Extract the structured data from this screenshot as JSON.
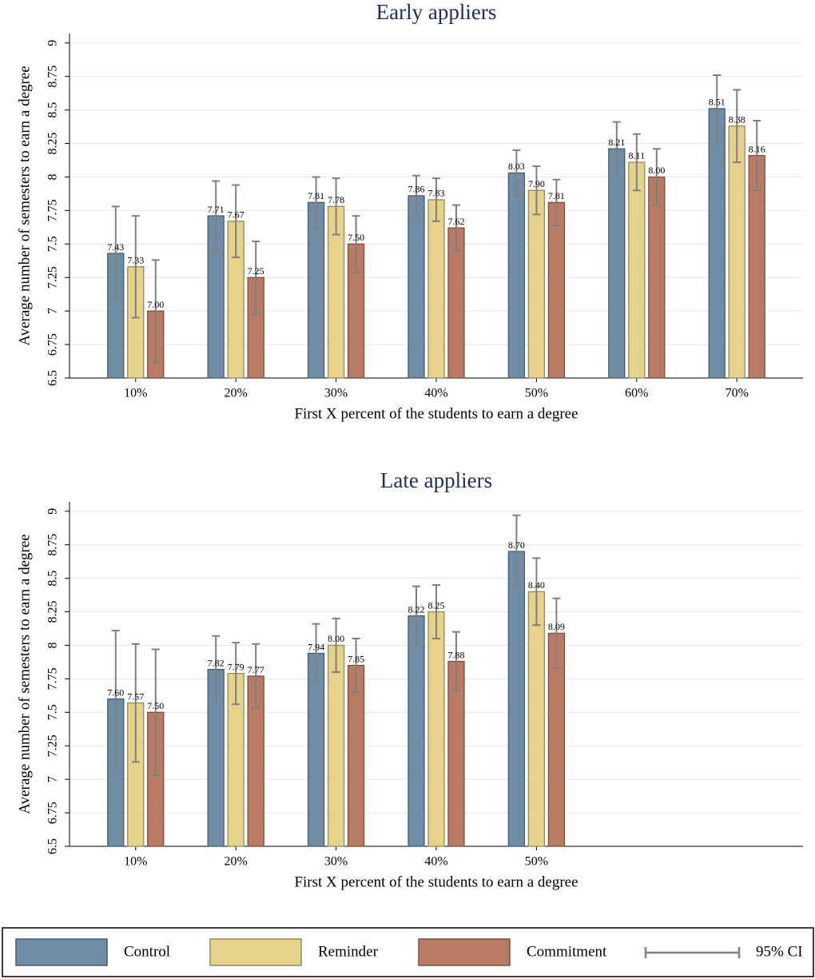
{
  "chart_data": [
    {
      "type": "bar",
      "title": "Early appliers",
      "x_label": "First X percent of the students to earn a degree",
      "y_label": "Average number of semesters to earn a degree",
      "categories": [
        "10%",
        "20%",
        "30%",
        "40%",
        "50%",
        "60%",
        "70%"
      ],
      "series": [
        {
          "name": "Control",
          "color": "#6f8da5",
          "values": [
            7.43,
            7.71,
            7.81,
            7.86,
            8.03,
            8.21,
            8.51
          ],
          "value_labels": [
            "7.43",
            "7.71",
            "7.81",
            "7.86",
            "8.03",
            "8.21",
            "8.51"
          ],
          "errors": [
            0.35,
            0.26,
            0.19,
            0.15,
            0.17,
            0.2,
            0.25
          ]
        },
        {
          "name": "Reminder",
          "color": "#e6d38b",
          "values": [
            7.33,
            7.67,
            7.78,
            7.83,
            7.9,
            8.11,
            8.38
          ],
          "value_labels": [
            "7.33",
            "7.67",
            "7.78",
            "7.83",
            "7.90",
            "8.11",
            "8.38"
          ],
          "errors": [
            0.38,
            0.27,
            0.21,
            0.16,
            0.18,
            0.21,
            0.27
          ]
        },
        {
          "name": "Commitment",
          "color": "#b97b63",
          "values": [
            7.0,
            7.25,
            7.5,
            7.62,
            7.81,
            8.0,
            8.16
          ],
          "value_labels": [
            "7.00",
            "7.25",
            "7.50",
            "7.62",
            "7.81",
            "8.00",
            "8.16"
          ],
          "errors": [
            0.38,
            0.27,
            0.21,
            0.17,
            0.17,
            0.21,
            0.26
          ]
        }
      ],
      "ylim": [
        6.5,
        9.07
      ],
      "yticks": [
        6.5,
        6.75,
        7,
        7.25,
        7.5,
        7.75,
        8,
        8.25,
        8.5,
        8.75,
        9
      ],
      "grid": true
    },
    {
      "type": "bar",
      "title": "Late appliers",
      "x_label": "First X percent of the students to earn a degree",
      "y_label": "Average number of semesters to earn a degree",
      "categories": [
        "10%",
        "20%",
        "30%",
        "40%",
        "50%",
        null,
        null
      ],
      "series": [
        {
          "name": "Control",
          "color": "#6f8da5",
          "values": [
            7.6,
            7.82,
            7.94,
            8.22,
            8.7,
            null,
            null
          ],
          "value_labels": [
            "7.60",
            "7.82",
            "7.94",
            "8.22",
            "8.70",
            null,
            null
          ],
          "errors": [
            0.51,
            0.25,
            0.22,
            0.22,
            0.27,
            null,
            null
          ]
        },
        {
          "name": "Reminder",
          "color": "#e6d38b",
          "values": [
            7.57,
            7.79,
            8.0,
            8.25,
            8.4,
            null,
            null
          ],
          "value_labels": [
            "7.57",
            "7.79",
            "8.00",
            "8.25",
            "8.40",
            null,
            null
          ],
          "errors": [
            0.44,
            0.23,
            0.2,
            0.2,
            0.25,
            null,
            null
          ]
        },
        {
          "name": "Commitment",
          "color": "#b97b63",
          "values": [
            7.5,
            7.77,
            7.85,
            7.88,
            8.09,
            null,
            null
          ],
          "value_labels": [
            "7.50",
            "7.77",
            "7.85",
            "7.88",
            "8.09",
            null,
            null
          ],
          "errors": [
            0.47,
            0.24,
            0.2,
            0.22,
            0.26,
            null,
            null
          ]
        }
      ],
      "ylim": [
        6.5,
        9.07
      ],
      "yticks": [
        6.5,
        6.75,
        7,
        7.25,
        7.5,
        7.75,
        8,
        8.25,
        8.5,
        8.75,
        9
      ],
      "grid": true
    }
  ],
  "legend": {
    "ci_label": "95% CI",
    "position": "bottom",
    "ci_color": "#808080"
  }
}
